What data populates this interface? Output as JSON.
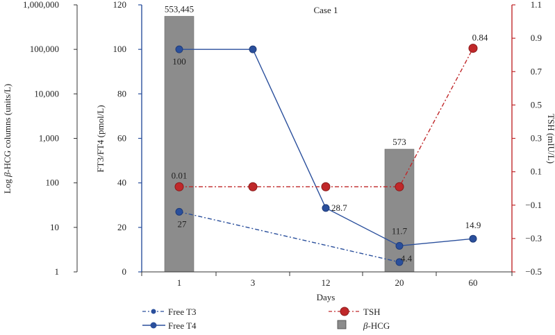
{
  "chart_data": {
    "type": "combo",
    "title": "Case 1",
    "categories": [
      "1",
      "3",
      "12",
      "20",
      "60"
    ],
    "xlabel": "Days",
    "left_outer_axis": {
      "label_prefix": "Log ",
      "label_symbol": "β",
      "label_suffix": "-HCG columns (units/L)",
      "scale": "log",
      "ylim": [
        1,
        1000000
      ],
      "ticks": [
        "1,000,000",
        "100,000",
        "10,000",
        "1,000",
        "100",
        "10",
        "1"
      ]
    },
    "left_axis": {
      "label": "FT3/FT4 (pmol/L)",
      "ylim": [
        0,
        120
      ],
      "ticks": [
        "120",
        "100",
        "80",
        "60",
        "40",
        "20",
        "0"
      ]
    },
    "right_axis": {
      "label": "TSH (mIU/L)",
      "ylim": [
        -0.5,
        1.1
      ],
      "ticks": [
        "1.1",
        "0.9",
        "0.7",
        "0.5",
        "0.3",
        "0.1",
        "−0.1",
        "−0.3",
        "−0.5"
      ],
      "color": "#c0282a"
    },
    "series": [
      {
        "name": "Free T3",
        "style": "dash-dot",
        "color": "#2a4f9c",
        "points": [
          {
            "category": "1",
            "value": 27,
            "label": "27"
          },
          {
            "category": "20",
            "value": 4.4,
            "label": "4.4"
          }
        ]
      },
      {
        "name": "Free T4",
        "style": "solid",
        "color": "#2a4f9c",
        "points": [
          {
            "category": "1",
            "value": 100,
            "label": "100"
          },
          {
            "category": "3",
            "value": 100,
            "label": ""
          },
          {
            "category": "12",
            "value": 28.7,
            "label": "28.7"
          },
          {
            "category": "20",
            "value": 11.7,
            "label": "11.7"
          },
          {
            "category": "60",
            "value": 14.9,
            "label": "14.9"
          }
        ]
      },
      {
        "name": "TSH",
        "style": "dash-dot",
        "color": "#c0282a",
        "axis": "right",
        "points": [
          {
            "category": "1",
            "value": 0.01,
            "label": "0.01"
          },
          {
            "category": "3",
            "value": 0.01,
            "label": ""
          },
          {
            "category": "12",
            "value": 0.01,
            "label": ""
          },
          {
            "category": "20",
            "value": 0.01,
            "label": ""
          },
          {
            "category": "60",
            "value": 0.84,
            "label": "0.84"
          }
        ]
      },
      {
        "name": "β-HCG",
        "type": "bar",
        "axis": "log",
        "color": "#8c8c8c",
        "points": [
          {
            "category": "1",
            "value": 553445,
            "label": "553,445"
          },
          {
            "category": "20",
            "value": 573,
            "label": "573"
          }
        ]
      }
    ],
    "legend": {
      "position": "bottom",
      "items": [
        {
          "name": "Free T3",
          "symbol": "",
          "text": "Free T3"
        },
        {
          "name": "Free T4",
          "symbol": "",
          "text": "Free T4"
        },
        {
          "name": "TSH",
          "symbol": "",
          "text": "TSH"
        },
        {
          "name": "beta-HCG",
          "symbol": "β",
          "text": "-HCG"
        }
      ]
    }
  }
}
